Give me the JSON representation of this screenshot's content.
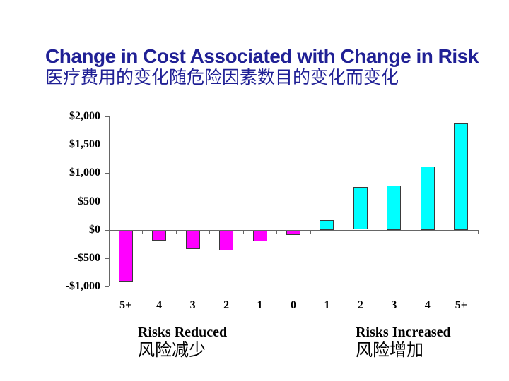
{
  "slide": {
    "title_en": "Change in Cost Associated with Change in Risk",
    "title_zh": "医疗费用的变化随危险因素数目的变化而变化"
  },
  "colors": {
    "title_text": "#202095",
    "reduced_bar": "#ff00ff",
    "increased_bar": "#00ffff",
    "bar_border": "#3a3a3a",
    "axis_line": "#666666",
    "label_text": "#000000"
  },
  "chart_data": {
    "type": "bar",
    "title": "Change in Cost Associated with Change in Risk",
    "subtitle_zh": "医疗费用的变化随危险因素数目的变化而变化",
    "categories": [
      "5+",
      "4",
      "3",
      "2",
      "1",
      "0",
      "1",
      "2",
      "3",
      "4",
      "5+"
    ],
    "values": [
      -900,
      -170,
      -325,
      -350,
      -190,
      -70,
      175,
      750,
      785,
      1120,
      1880
    ],
    "ylim": [
      -1000,
      2000
    ],
    "yticks": [
      {
        "label": "$2,000",
        "value": 2000
      },
      {
        "label": "$1,500",
        "value": 1500
      },
      {
        "label": "$1,000",
        "value": 1000
      },
      {
        "label": "$500",
        "value": 500
      },
      {
        "label": "$0",
        "value": 0
      },
      {
        "label": "-$500",
        "value": -500
      },
      {
        "label": "-$1,000",
        "value": -1000
      }
    ],
    "grid": "off",
    "legend": "none",
    "x_groups": [
      {
        "en": "Risks Reduced",
        "zh": "风险减少",
        "bar_color": "#ff00ff",
        "indices": [
          0,
          5
        ]
      },
      {
        "en": "Risks Increased",
        "zh": "风险增加",
        "bar_color": "#00ffff",
        "indices": [
          6,
          10
        ]
      }
    ]
  }
}
